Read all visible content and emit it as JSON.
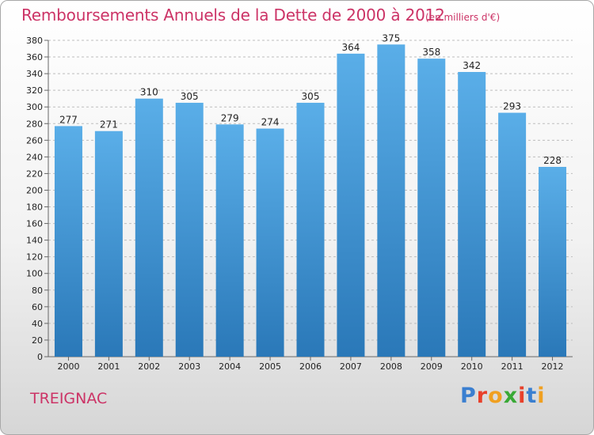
{
  "header": {
    "title": "Remboursements Annuels de la Dette de 2000 à 2012",
    "subtitle": "(en milliers d'€)"
  },
  "footer": {
    "commune": "TREIGNAC",
    "brand": "Proxiti"
  },
  "colors": {
    "title": "#cc3366",
    "bar_top": "#5aaee8",
    "bar_bottom": "#2a78b8",
    "brand_letters": [
      "#3a7fd0",
      "#e8402a",
      "#f0a020",
      "#39a935",
      "#e8402a",
      "#3a7fd0",
      "#f0a020"
    ]
  },
  "chart_data": {
    "type": "bar",
    "title": "Remboursements Annuels de la Dette de 2000 à 2012",
    "subtitle": "(en milliers d'€)",
    "xlabel": "",
    "ylabel": "",
    "categories": [
      "2000",
      "2001",
      "2002",
      "2003",
      "2004",
      "2005",
      "2006",
      "2007",
      "2008",
      "2009",
      "2010",
      "2011",
      "2012"
    ],
    "values": [
      277,
      271,
      310,
      305,
      279,
      274,
      305,
      364,
      375,
      358,
      342,
      293,
      228
    ],
    "value_labels": [
      "277",
      "271",
      "310",
      "305",
      "279",
      "274",
      "305",
      "364",
      "375",
      "358",
      "342",
      "293",
      "228"
    ],
    "ylim": [
      0,
      380
    ],
    "yticks": [
      "0",
      "20",
      "40",
      "60",
      "80",
      "100",
      "120",
      "140",
      "160",
      "180",
      "200",
      "220",
      "240",
      "260",
      "280",
      "300",
      "320",
      "340",
      "360",
      "380"
    ],
    "grid": true,
    "legend": "none"
  }
}
